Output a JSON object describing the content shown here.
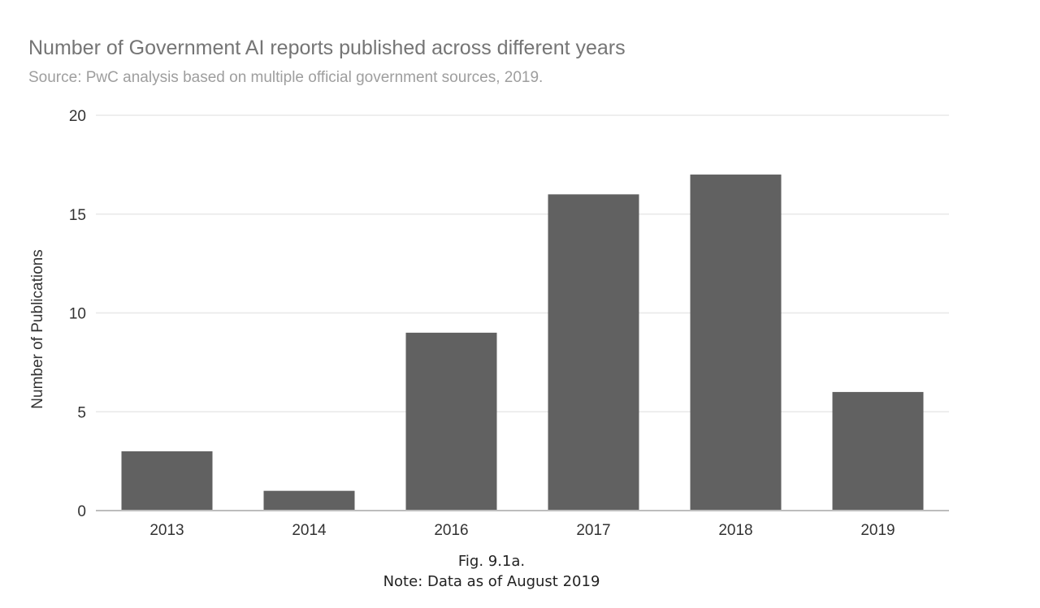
{
  "chart_data": {
    "type": "bar",
    "title": "Number of Government AI reports published across different years",
    "subtitle": "Source: PwC analysis based on multiple official government sources, 2019.",
    "xlabel": "",
    "ylabel": "Number of Publications",
    "categories": [
      "2013",
      "2014",
      "2016",
      "2017",
      "2018",
      "2019"
    ],
    "values": [
      3,
      1,
      9,
      16,
      17,
      6
    ],
    "ylim": [
      0,
      20
    ],
    "yticks": [
      0,
      5,
      10,
      15,
      20
    ],
    "grid": true,
    "legend": "none",
    "bar_color": "#616161",
    "grid_color": "#e8e8e8",
    "axis_color": "#bdbdbd"
  },
  "caption": {
    "figure": "Fig. 9.1a.",
    "note": "Note: Data as of August 2019"
  }
}
